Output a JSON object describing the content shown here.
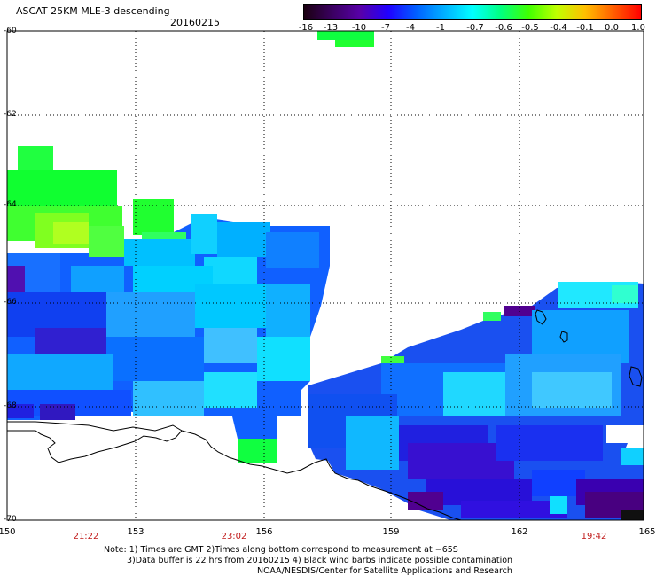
{
  "header": {
    "title": "ASCAT 25KM MLE-3 descending",
    "date": "20160215"
  },
  "colorbar": {
    "labels": [
      "-16",
      "-13",
      "-10",
      "-7",
      "-4",
      "-1",
      "-0.7",
      "-0.6",
      "-0.5",
      "-0.4",
      "-0.1",
      "0.0",
      "1.0"
    ],
    "colors": [
      "#1a0010",
      "#3a0060",
      "#5800a8",
      "#2000ff",
      "#0060ff",
      "#00b0ff",
      "#00ffff",
      "#00ff80",
      "#40ff00",
      "#c0ff00",
      "#ffc000",
      "#ff6000",
      "#ff0000"
    ]
  },
  "axes": {
    "lat_labels": [
      "-60",
      "-62",
      "-64",
      "-66",
      "-68",
      "-70"
    ],
    "lon_labels": [
      "150",
      "153",
      "156",
      "159",
      "162",
      "165"
    ],
    "times": [
      "21:22",
      "23:02",
      "19:42"
    ]
  },
  "notes": {
    "line1": "Note: 1) Times are GMT 2)Times along bottom correspond to measurement at −65S",
    "line2": "3)Data buffer is 22 hrs from 20160215 4) Black wind barbs indicate possible contamination",
    "line3": "NOAA/NESDIS/Center for Satellite Applications and Research"
  }
}
